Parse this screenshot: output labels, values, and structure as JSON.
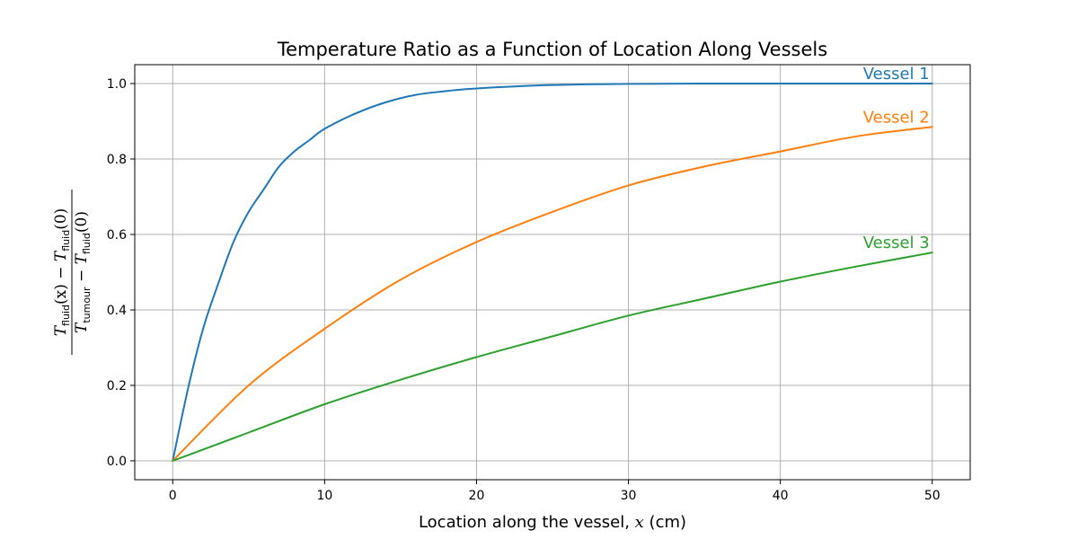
{
  "chart_data": {
    "type": "line",
    "title": "Temperature Ratio as a Function of Location Along Vessels",
    "xlabel": {
      "prefix": "Location along the vessel, ",
      "var": "x",
      "suffix": " (cm)"
    },
    "ylabel": {
      "numerator": "T_fluid(x) − T_fluid(0)",
      "denominator": "T_tumour − T_fluid(0)",
      "parts": {
        "T": "T",
        "fluid": "fluid",
        "tumour": "tumour",
        "x_arg": "(x)",
        "zero_arg": "(0)",
        "minus": " − "
      }
    },
    "xlim": [
      -2.5,
      52.5
    ],
    "ylim": [
      -0.05,
      1.05
    ],
    "xticks": [
      0,
      10,
      20,
      30,
      40,
      50
    ],
    "xtick_labels": [
      "0",
      "10",
      "20",
      "30",
      "40",
      "50"
    ],
    "yticks": [
      0.0,
      0.2,
      0.4,
      0.6,
      0.8,
      1.0
    ],
    "ytick_labels": [
      "0.0",
      "0.2",
      "0.4",
      "0.6",
      "0.8",
      "1.0"
    ],
    "grid": true,
    "legend": "none",
    "series": [
      {
        "name": "Vessel 1",
        "color": "#1f77b4",
        "x": [
          0,
          1,
          2,
          3,
          4,
          5,
          6,
          7,
          8,
          9,
          10,
          12,
          14,
          16,
          18,
          20,
          25,
          30,
          35,
          40,
          45,
          50
        ],
        "values": [
          0.0,
          0.19,
          0.35,
          0.47,
          0.58,
          0.66,
          0.72,
          0.78,
          0.82,
          0.85,
          0.88,
          0.92,
          0.95,
          0.97,
          0.98,
          0.987,
          0.996,
          0.999,
          1.0,
          1.0,
          1.0,
          1.0
        ]
      },
      {
        "name": "Vessel 2",
        "color": "#ff7f0e",
        "x": [
          0,
          5,
          10,
          15,
          20,
          25,
          30,
          35,
          40,
          45,
          50
        ],
        "values": [
          0.0,
          0.2,
          0.35,
          0.48,
          0.58,
          0.66,
          0.73,
          0.78,
          0.82,
          0.86,
          0.885
        ]
      },
      {
        "name": "Vessel 3",
        "color": "#2ca02c",
        "x": [
          0,
          5,
          10,
          15,
          20,
          25,
          30,
          35,
          40,
          45,
          50
        ],
        "values": [
          0.0,
          0.075,
          0.15,
          0.215,
          0.275,
          0.33,
          0.385,
          0.43,
          0.475,
          0.515,
          0.552
        ]
      }
    ]
  }
}
